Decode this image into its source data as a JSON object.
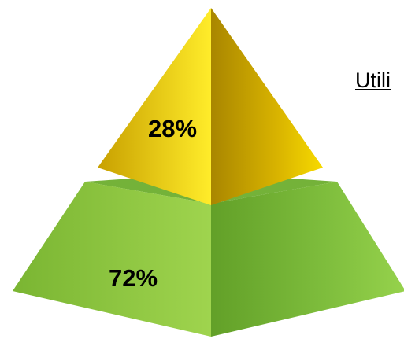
{
  "chart_data": {
    "type": "pyramid",
    "segments": [
      {
        "label": "28%",
        "value": 28,
        "color": "#f0d000"
      },
      {
        "label": "72%",
        "value": 72,
        "color": "#8cc63f"
      }
    ]
  },
  "side_text": "Utili"
}
